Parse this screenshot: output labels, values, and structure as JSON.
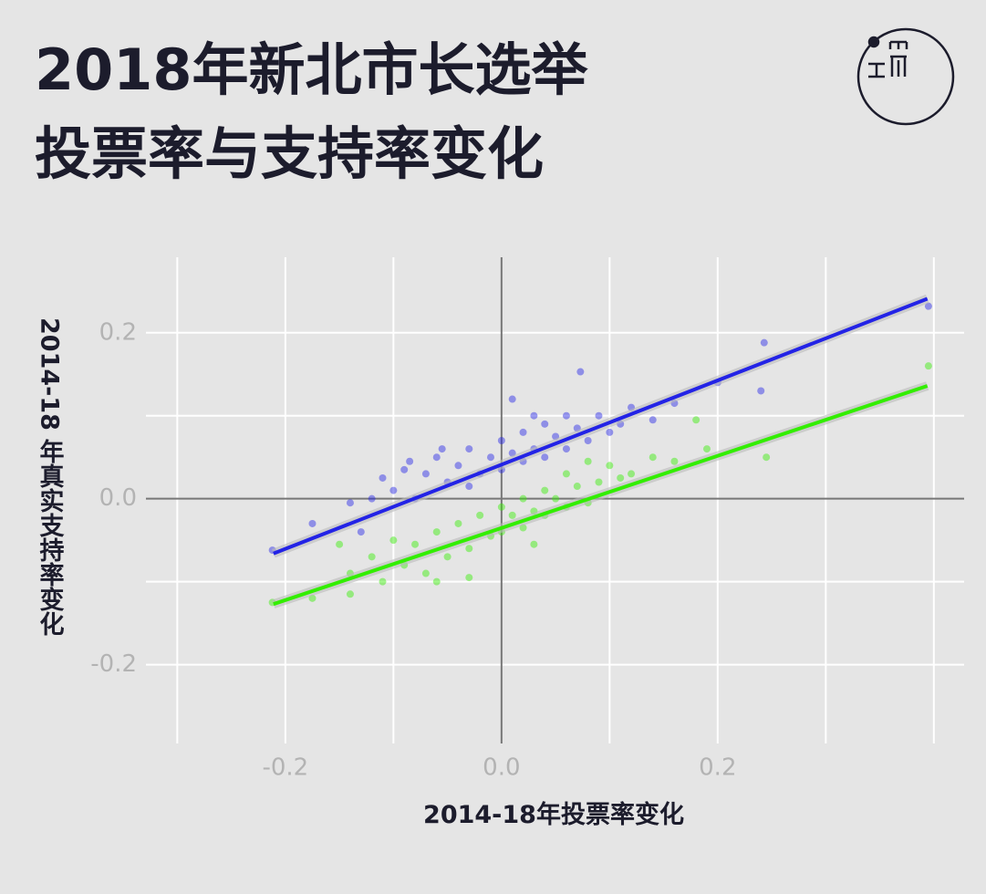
{
  "chart_data": {
    "type": "scatter",
    "title": [
      "2018年新北市长选举",
      "投票率与支持率变化"
    ],
    "x_label": "2014-18年投票率变化",
    "y_label": "2014-18 年真实支持率变化",
    "xlim": [
      -0.329,
      0.428
    ],
    "ylim": [
      -0.295,
      0.291
    ],
    "xticks": [
      -0.2,
      {
        "value": 0,
        "label": "0.0"
      },
      0.2
    ],
    "yticks": [
      -0.2,
      {
        "value": 0,
        "label": "0.0"
      },
      0.2
    ],
    "xgrid": [
      -0.3,
      -0.2,
      -0.1,
      0.1,
      0.2,
      0.3,
      0.4
    ],
    "ygrid": [
      -0.2,
      -0.1,
      0.1,
      0.2
    ],
    "grid": true,
    "series": [
      {
        "color": "#2323e6",
        "x": [
          -0.212,
          -0.175,
          -0.14,
          -0.13,
          -0.12,
          -0.11,
          -0.1,
          -0.09,
          -0.08,
          -0.07,
          -0.06,
          -0.05,
          -0.04,
          -0.03,
          -0.02,
          -0.01,
          0.0,
          0.0,
          0.01,
          0.02,
          0.02,
          0.03,
          0.04,
          0.04,
          0.05,
          0.06,
          0.06,
          0.07,
          0.08,
          0.09,
          0.1,
          0.11,
          0.12,
          0.14,
          0.16,
          0.2,
          0.24,
          0.243,
          0.073,
          0.01,
          0.395,
          -0.055,
          -0.085,
          -0.03,
          0.03
        ],
        "y": [
          -0.062,
          -0.03,
          -0.005,
          -0.04,
          0.0,
          0.025,
          0.01,
          0.035,
          0.0,
          0.03,
          0.05,
          0.02,
          0.04,
          0.06,
          0.03,
          0.05,
          0.07,
          0.035,
          0.055,
          0.08,
          0.045,
          0.06,
          0.09,
          0.05,
          0.075,
          0.1,
          0.06,
          0.085,
          0.07,
          0.1,
          0.08,
          0.09,
          0.11,
          0.095,
          0.115,
          0.14,
          0.13,
          0.188,
          0.153,
          0.12,
          0.232,
          0.06,
          0.045,
          0.015,
          0.1
        ],
        "trend_x": [
          -0.211,
          0.394
        ],
        "trend_y": [
          -0.066,
          0.241
        ]
      },
      {
        "color": "#33ee00",
        "x": [
          -0.212,
          -0.175,
          -0.14,
          -0.14,
          -0.12,
          -0.11,
          -0.1,
          -0.09,
          -0.08,
          -0.07,
          -0.06,
          -0.05,
          -0.04,
          -0.03,
          -0.02,
          -0.01,
          0.0,
          0.0,
          0.01,
          0.02,
          0.02,
          0.03,
          0.04,
          0.04,
          0.05,
          0.06,
          0.06,
          0.07,
          0.08,
          0.09,
          0.1,
          0.11,
          0.12,
          0.14,
          0.16,
          0.19,
          0.245,
          0.395,
          -0.06,
          -0.03,
          0.03,
          0.08,
          -0.15,
          0.18
        ],
        "y": [
          -0.125,
          -0.12,
          -0.09,
          -0.115,
          -0.07,
          -0.1,
          -0.05,
          -0.08,
          -0.055,
          -0.09,
          -0.04,
          -0.07,
          -0.03,
          -0.06,
          -0.02,
          -0.045,
          -0.01,
          -0.04,
          -0.02,
          0.0,
          -0.035,
          -0.015,
          0.01,
          -0.02,
          0.0,
          0.03,
          -0.01,
          0.015,
          -0.005,
          0.02,
          0.04,
          0.025,
          0.03,
          0.05,
          0.045,
          0.06,
          0.05,
          0.16,
          -0.1,
          -0.095,
          -0.055,
          0.045,
          -0.055,
          0.095
        ],
        "trend_x": [
          -0.211,
          0.394
        ],
        "trend_y": [
          -0.127,
          0.136
        ]
      }
    ]
  }
}
